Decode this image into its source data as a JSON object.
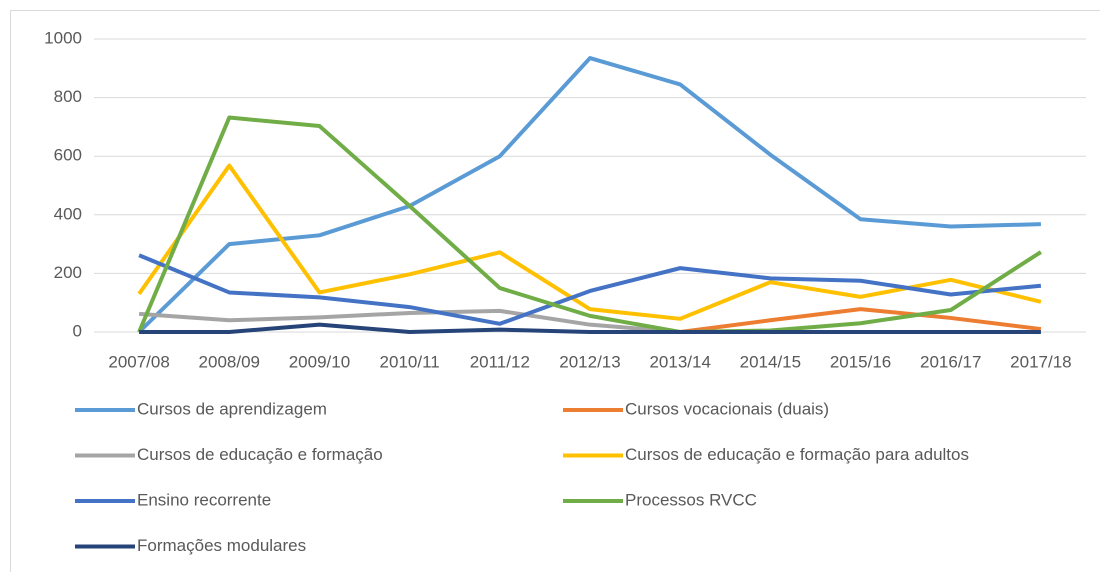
{
  "chart_data": {
    "type": "line",
    "categories": [
      "2007/08",
      "2008/09",
      "2009/10",
      "2010/11",
      "2011/12",
      "2012/13",
      "2013/14",
      "2014/15",
      "2015/16",
      "2016/17",
      "2017/18"
    ],
    "series": [
      {
        "name": "Cursos de aprendizagem",
        "color": "#5b9bd5",
        "values": [
          0,
          300,
          330,
          430,
          600,
          935,
          845,
          605,
          385,
          360,
          368
        ]
      },
      {
        "name": "Cursos vocacionais (duais)",
        "color": "#ed7d31",
        "values": [
          null,
          null,
          null,
          null,
          null,
          null,
          0,
          40,
          78,
          48,
          10
        ]
      },
      {
        "name": "Cursos de educação e formação",
        "color": "#a5a5a5",
        "values": [
          62,
          40,
          50,
          65,
          72,
          25,
          0,
          null,
          null,
          null,
          null
        ]
      },
      {
        "name": "Cursos de educação e formação para adultos",
        "color": "#ffc000",
        "values": [
          130,
          568,
          135,
          197,
          272,
          78,
          45,
          170,
          120,
          178,
          103
        ]
      },
      {
        "name": "Ensino recorrente",
        "color": "#4472c4",
        "values": [
          262,
          135,
          118,
          85,
          28,
          140,
          218,
          183,
          175,
          128,
          158
        ]
      },
      {
        "name": "Processos RVCC",
        "color": "#70ad47",
        "values": [
          0,
          732,
          703,
          430,
          150,
          55,
          0,
          5,
          30,
          75,
          273
        ]
      },
      {
        "name": "Formações modulares",
        "color": "#264478",
        "values": [
          0,
          0,
          25,
          0,
          8,
          0,
          0,
          0,
          0,
          0,
          0
        ]
      }
    ],
    "ylim": [
      0,
      1000
    ],
    "yticks": [
      0,
      200,
      400,
      600,
      800,
      1000
    ],
    "grid": true,
    "legend": "bottom"
  }
}
